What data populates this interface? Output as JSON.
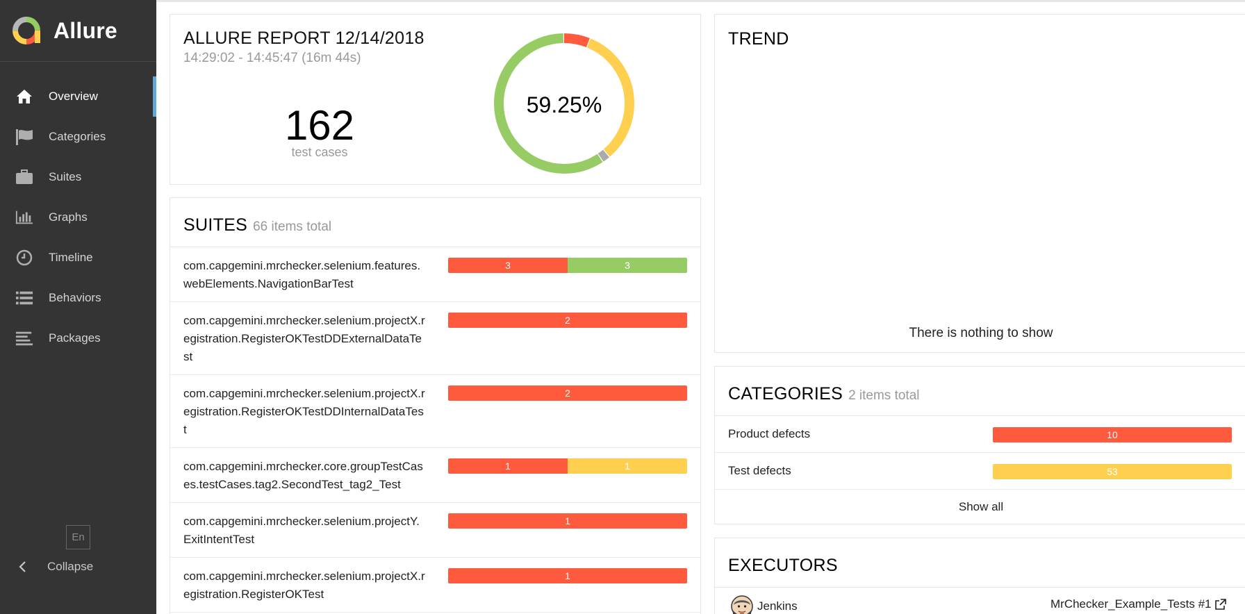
{
  "app": {
    "name": "Allure"
  },
  "sidebar": {
    "items": [
      {
        "label": "Overview",
        "icon": "home-icon",
        "active": true
      },
      {
        "label": "Categories",
        "icon": "flag-icon"
      },
      {
        "label": "Suites",
        "icon": "briefcase-icon"
      },
      {
        "label": "Graphs",
        "icon": "bar-chart-icon"
      },
      {
        "label": "Timeline",
        "icon": "clock-icon"
      },
      {
        "label": "Behaviors",
        "icon": "list-icon"
      },
      {
        "label": "Packages",
        "icon": "align-left-icon"
      }
    ],
    "language": "En",
    "collapse_label": "Collapse"
  },
  "summary": {
    "title": "ALLURE REPORT 12/14/2018",
    "time_range": "14:29:02 - 14:45:47 (16m 44s)",
    "test_count": "162",
    "test_count_label": "test cases",
    "success_rate": "59.25%",
    "donut_segments": [
      {
        "status": "failed",
        "fraction": 0.0617,
        "color": "#fd5a3e"
      },
      {
        "status": "broken",
        "fraction": 0.327,
        "color": "#ffd050"
      },
      {
        "status": "skipped",
        "fraction": 0.0185,
        "color": "#aaaaaa"
      },
      {
        "status": "passed",
        "fraction": 0.5925,
        "color": "#97cc64"
      }
    ]
  },
  "suites": {
    "title": "SUITES",
    "total": "66 items total",
    "rows": [
      {
        "name": "com.capgemini.mrchecker.selenium.features.webElements.NavigationBarTest",
        "segments": [
          {
            "value": 3,
            "color": "#fd5a3e"
          },
          {
            "value": 3,
            "color": "#97cc64"
          }
        ]
      },
      {
        "name": "com.capgemini.mrchecker.selenium.projectX.registration.RegisterOKTestDDExternalDataTest",
        "segments": [
          {
            "value": 2,
            "color": "#fd5a3e"
          }
        ]
      },
      {
        "name": "com.capgemini.mrchecker.selenium.projectX.registration.RegisterOKTestDDInternalDataTest",
        "segments": [
          {
            "value": 2,
            "color": "#fd5a3e"
          }
        ]
      },
      {
        "name": "com.capgemini.mrchecker.core.groupTestCases.testCases.tag2.SecondTest_tag2_Test",
        "segments": [
          {
            "value": 1,
            "color": "#fd5a3e"
          },
          {
            "value": 1,
            "color": "#ffd050"
          }
        ]
      },
      {
        "name": "com.capgemini.mrchecker.selenium.projectY.ExitIntentTest",
        "segments": [
          {
            "value": 1,
            "color": "#fd5a3e"
          }
        ]
      },
      {
        "name": "com.capgemini.mrchecker.selenium.projectX.registration.RegisterOKTest",
        "segments": [
          {
            "value": 1,
            "color": "#fd5a3e"
          }
        ]
      }
    ]
  },
  "trend": {
    "title": "TREND",
    "empty_text": "There is nothing to show"
  },
  "categories": {
    "title": "CATEGORIES",
    "total": "2 items total",
    "rows": [
      {
        "name": "Product defects",
        "value": "10",
        "color": "#fd5a3e"
      },
      {
        "name": "Test defects",
        "value": "53",
        "color": "#ffd050"
      }
    ],
    "show_all_label": "Show all"
  },
  "executors": {
    "title": "EXECUTORS",
    "rows": [
      {
        "name": "Jenkins",
        "build": "MrChecker_Example_Tests #1",
        "icon": "jenkins-icon"
      }
    ]
  }
}
